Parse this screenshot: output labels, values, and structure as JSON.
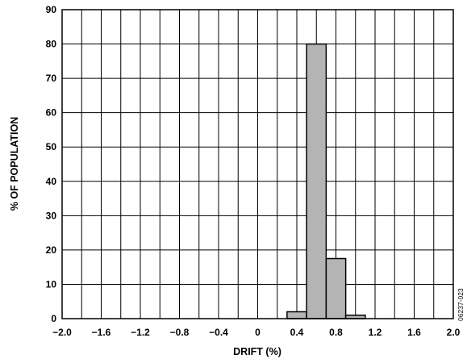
{
  "chart_data": {
    "type": "bar",
    "xlabel": "DRIFT (%)",
    "ylabel": "% OF POPULATION",
    "xlim": [
      -2.0,
      2.0
    ],
    "ylim": [
      0,
      90
    ],
    "grid": true,
    "x_ticks": [
      "−2.0",
      "−1.6",
      "−1.2",
      "−0.8",
      "−0.4",
      "0",
      "0.4",
      "0.8",
      "1.2",
      "1.6",
      "2.0"
    ],
    "y_ticks": [
      "0",
      "10",
      "20",
      "30",
      "40",
      "50",
      "60",
      "70",
      "80",
      "90"
    ],
    "bin_width": 0.2,
    "bins": [
      {
        "start": 0.3,
        "value": 2
      },
      {
        "start": 0.5,
        "value": 80
      },
      {
        "start": 0.7,
        "value": 17.5
      },
      {
        "start": 0.9,
        "value": 1
      }
    ],
    "figure_id": "06237-023",
    "colors": {
      "bar_fill": "#b4b4b4",
      "bar_stroke": "#000000",
      "grid": "#000000",
      "frame": "#000000"
    }
  }
}
